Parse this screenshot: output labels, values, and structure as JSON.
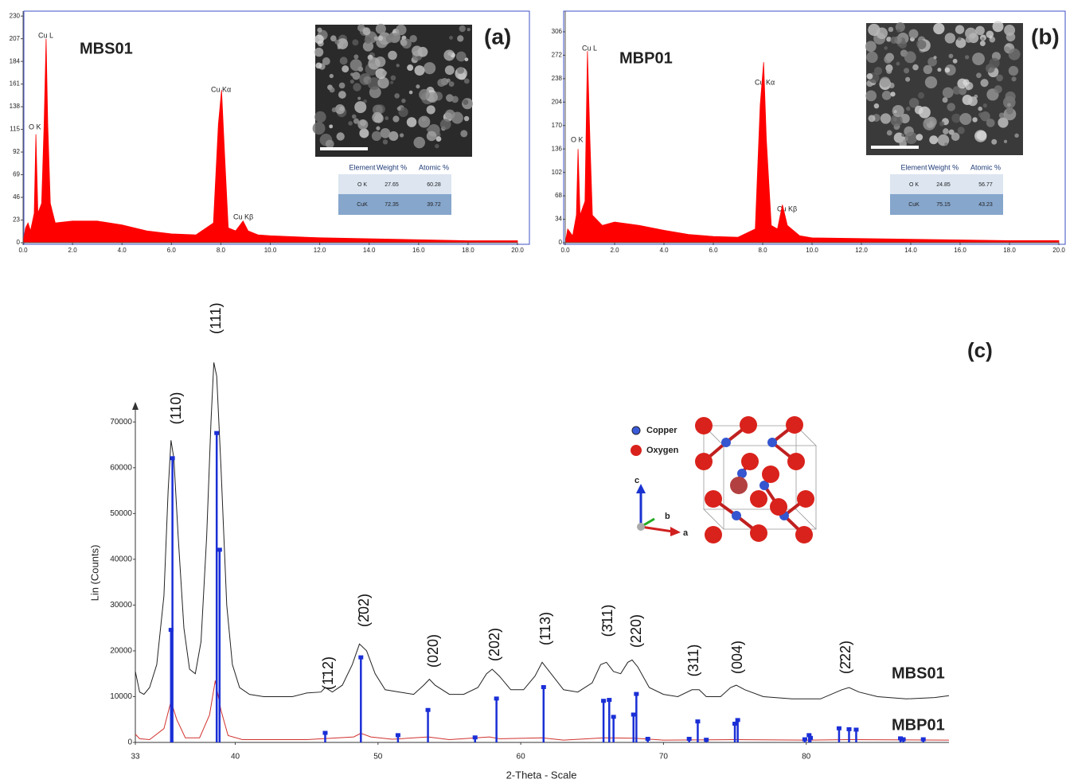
{
  "chart_data": [
    {
      "type": "area",
      "title": "(a)",
      "subtitle": "MBS01",
      "color": "#ff0000",
      "x": [
        0.0,
        0.1,
        0.2,
        0.3,
        0.45,
        0.52,
        0.6,
        0.75,
        0.85,
        0.93,
        1.0,
        1.1,
        1.3,
        2,
        3,
        4,
        5,
        6,
        7,
        7.7,
        7.9,
        8.03,
        8.15,
        8.3,
        8.6,
        8.9,
        9.1,
        9.5,
        10,
        12,
        14,
        16,
        18,
        20
      ],
      "values": [
        0,
        15,
        20,
        12,
        30,
        110,
        30,
        40,
        120,
        207,
        120,
        40,
        20,
        22,
        22,
        18,
        12,
        9,
        8,
        20,
        120,
        155,
        90,
        15,
        12,
        22,
        12,
        8,
        7,
        5,
        4,
        3,
        2,
        2
      ],
      "xlim": [
        0,
        20
      ],
      "xticks": [
        {
          "value": 0,
          "label": "0.0"
        },
        {
          "value": 2,
          "label": "2.0"
        },
        {
          "value": 4,
          "label": "4.0"
        },
        {
          "value": 6,
          "label": "6.0"
        },
        {
          "value": 8,
          "label": "8.0"
        },
        {
          "value": 10,
          "label": "10.0"
        },
        {
          "value": 12,
          "label": "12.0"
        },
        {
          "value": 14,
          "label": "14.0"
        },
        {
          "value": 16,
          "label": "16.0"
        },
        {
          "value": 18,
          "label": "18.0"
        },
        {
          "value": 20,
          "label": "20.0"
        }
      ],
      "ylim": [
        0,
        235
      ],
      "yticks": [
        0,
        23,
        46,
        69,
        92,
        115,
        138,
        161,
        184,
        207,
        230
      ],
      "annotations": [
        "Cu L",
        "O K",
        "Cu Kα",
        "Cu Kβ"
      ],
      "table": {
        "header": [
          "Element",
          "Weight %",
          "Atomic %"
        ],
        "rows": [
          [
            "O K",
            27.65,
            60.28
          ],
          [
            "CuK",
            72.35,
            39.72
          ]
        ]
      }
    },
    {
      "type": "area",
      "title": "(b)",
      "subtitle": "MBP01",
      "color": "#ff0000",
      "x": [
        0.0,
        0.1,
        0.3,
        0.45,
        0.52,
        0.6,
        0.8,
        0.9,
        1.0,
        1.1,
        1.5,
        2,
        3,
        4,
        5,
        6,
        7,
        7.7,
        7.9,
        8.04,
        8.15,
        8.35,
        8.6,
        8.8,
        9.0,
        9.5,
        10,
        12,
        14,
        16,
        18,
        20
      ],
      "values": [
        0,
        20,
        10,
        40,
        136,
        40,
        60,
        278,
        150,
        40,
        25,
        30,
        25,
        18,
        12,
        9,
        8,
        20,
        200,
        262,
        150,
        25,
        20,
        55,
        25,
        10,
        7,
        6,
        5,
        4,
        3,
        3
      ],
      "xlim": [
        0,
        20
      ],
      "xticks": [
        {
          "value": 0,
          "label": "0.0"
        },
        {
          "value": 2,
          "label": "2.0"
        },
        {
          "value": 4,
          "label": "4.0"
        },
        {
          "value": 6,
          "label": "6.0"
        },
        {
          "value": 8,
          "label": "8.0"
        },
        {
          "value": 10,
          "label": "10.0"
        },
        {
          "value": 12,
          "label": "12.0"
        },
        {
          "value": 14,
          "label": "14.0"
        },
        {
          "value": 16,
          "label": "16.0"
        },
        {
          "value": 18,
          "label": "18.0"
        },
        {
          "value": 20,
          "label": "20.0"
        }
      ],
      "ylim": [
        0,
        336
      ],
      "yticks": [
        0,
        34,
        68,
        102,
        136,
        170,
        204,
        238,
        272,
        306
      ],
      "annotations": [
        "Cu L",
        "O K",
        "Cu Kα",
        "Cu Kβ"
      ],
      "table": {
        "header": [
          "Element",
          "Weight %",
          "Atomic %"
        ],
        "rows": [
          [
            "O K",
            24.85,
            56.77
          ],
          [
            "CuK",
            75.15,
            43.23
          ]
        ]
      }
    },
    {
      "type": "line",
      "title": "(c)",
      "xlabel": "2-Theta - Scale",
      "ylabel": "Lin (Counts)",
      "xlim": [
        33,
        90
      ],
      "xticks": [
        33,
        40,
        50,
        60,
        70,
        80
      ],
      "ylim": [
        0,
        85000
      ],
      "yticks": [
        0,
        10000,
        20000,
        30000,
        40000,
        50000,
        60000,
        70000
      ],
      "series": [
        {
          "name": "MBS01",
          "color": "#222222",
          "x": [
            33.0,
            33.3,
            33.6,
            34.0,
            34.5,
            35.0,
            35.3,
            35.5,
            35.7,
            36.0,
            36.4,
            36.8,
            37.2,
            37.6,
            38.0,
            38.3,
            38.5,
            38.7,
            39.0,
            39.4,
            39.8,
            40.3,
            41,
            42,
            43,
            44,
            45,
            46,
            46.3,
            46.8,
            47.5,
            48.2,
            48.7,
            49.2,
            49.8,
            50.5,
            51.5,
            52.5,
            53.2,
            53.6,
            54.0,
            55,
            56,
            57,
            57.6,
            58.0,
            58.5,
            59.3,
            60.2,
            61.0,
            61.5,
            62.0,
            63,
            64,
            65,
            65.6,
            66.0,
            66.5,
            67,
            67.5,
            67.8,
            68.2,
            69,
            70,
            71,
            72,
            72.5,
            73,
            74,
            74.7,
            75.1,
            75.7,
            77,
            79,
            81,
            82.5,
            83,
            83.7,
            85,
            87,
            89,
            90
          ],
          "values": [
            15500,
            11000,
            10500,
            12000,
            17000,
            32000,
            55000,
            66000,
            62000,
            45000,
            25000,
            16000,
            15000,
            22000,
            45000,
            70000,
            83000,
            80000,
            60000,
            30000,
            17000,
            12000,
            10500,
            10000,
            10000,
            10000,
            10800,
            11000,
            12000,
            11000,
            12500,
            17000,
            21500,
            20000,
            15000,
            11500,
            11000,
            10500,
            12500,
            13800,
            12500,
            10500,
            10500,
            12000,
            15000,
            16000,
            14500,
            11500,
            11500,
            14500,
            17500,
            15500,
            11500,
            11000,
            13000,
            17000,
            17500,
            15500,
            15000,
            17500,
            18000,
            16500,
            12000,
            10500,
            10000,
            11500,
            11500,
            10000,
            10000,
            12000,
            12500,
            11500,
            10000,
            9500,
            9500,
            11500,
            12000,
            11000,
            10000,
            9500,
            9800,
            10200
          ]
        },
        {
          "name": "MBP01",
          "color": "#d0312d",
          "x": [
            33,
            33.3,
            34,
            35,
            35.5,
            35.9,
            36.5,
            37.5,
            38.2,
            38.6,
            39,
            39.5,
            40.5,
            45,
            48.3,
            48.8,
            49.5,
            51,
            53.5,
            55,
            57.8,
            58.5,
            61.5,
            63,
            65.8,
            68,
            70,
            75,
            80,
            83,
            90
          ],
          "values": [
            1800,
            800,
            600,
            3000,
            9000,
            5000,
            1000,
            1000,
            6000,
            13500,
            7000,
            1500,
            600,
            600,
            1200,
            2000,
            1200,
            700,
            1200,
            600,
            1200,
            800,
            1000,
            500,
            1000,
            900,
            500,
            600,
            500,
            600,
            500
          ]
        }
      ],
      "sticks": {
        "color": "#1a2fd6",
        "x": [
          35.5,
          35.6,
          38.7,
          38.9,
          46.3,
          48.8,
          51.4,
          53.5,
          56.8,
          58.3,
          61.6,
          65.8,
          66.2,
          66.5,
          67.9,
          68.1,
          68.9,
          71.8,
          72.4,
          73.0,
          75.0,
          75.2,
          79.9,
          80.2,
          80.3,
          82.3,
          83.0,
          83.5,
          86.6,
          86.8,
          88.2
        ],
        "values": [
          24500,
          62000,
          67500,
          42000,
          2000,
          18500,
          1500,
          7000,
          1000,
          9500,
          12000,
          9000,
          9200,
          5500,
          6000,
          10500,
          700,
          700,
          4500,
          500,
          4000,
          4800,
          600,
          1500,
          900,
          3000,
          2800,
          2700,
          800,
          600,
          600
        ]
      },
      "annotations": [
        "(110)",
        "(111)",
        "(1̄12)",
        "(2̄02)",
        "(020)",
        "(202)",
        "(1̄13)",
        "(3̄11)",
        "(220)",
        "(311)",
        "(004)",
        "(2̄22)"
      ],
      "inset": {
        "legend": [
          "Copper",
          "Oxygen"
        ],
        "axes": [
          "c",
          "b",
          "a"
        ]
      }
    }
  ]
}
